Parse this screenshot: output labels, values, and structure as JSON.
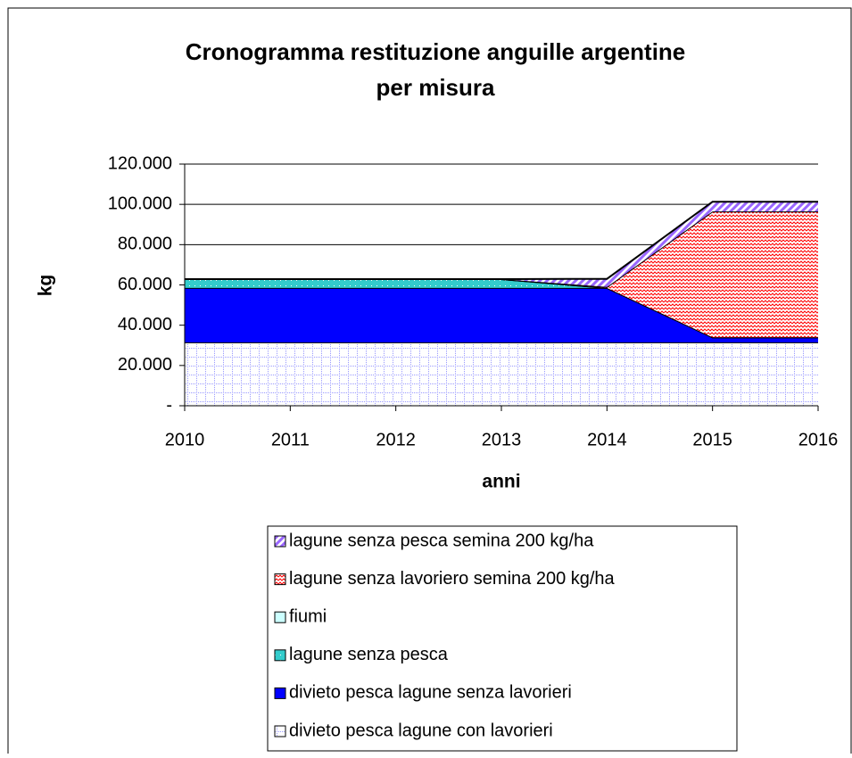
{
  "chart_data": {
    "type": "stacked-area",
    "title": [
      "Cronogramma restituzione anguille argentine",
      "per misura"
    ],
    "x_label": "anni",
    "y_label": "kg",
    "x": [
      2010,
      2011,
      2012,
      2013,
      2014,
      2015,
      2016
    ],
    "xlim": [
      2010,
      2016
    ],
    "xticks": [
      2010,
      2011,
      2012,
      2013,
      2014,
      2015,
      2016
    ],
    "ylim": [
      0,
      120000
    ],
    "yticks": [
      {
        "value": 0,
        "label": "-"
      },
      {
        "value": 20000,
        "label": "20.000"
      },
      {
        "value": 40000,
        "label": "40.000"
      },
      {
        "value": 60000,
        "label": "60.000"
      },
      {
        "value": 80000,
        "label": "80.000"
      },
      {
        "value": 100000,
        "label": "100.000"
      },
      {
        "value": 120000,
        "label": "120.000"
      }
    ],
    "grid": true,
    "series": [
      {
        "name": "divieto pesca lagune con lavorieri",
        "color": "#9999ff",
        "pattern": "grid",
        "values": [
          31500,
          31500,
          31500,
          31500,
          31500,
          31500,
          31500
        ]
      },
      {
        "name": "divieto pesca lagune senza lavorieri",
        "color": "#0000ff",
        "pattern": "solid",
        "values": [
          27000,
          27000,
          27000,
          27000,
          27000,
          2500,
          2500
        ]
      },
      {
        "name": "lagune senza pesca",
        "color": "#33cccc",
        "pattern": "dots",
        "values": [
          4400,
          4400,
          4400,
          4400,
          0,
          0,
          0
        ]
      },
      {
        "name": "fiumi",
        "color": "#ccffff",
        "pattern": "solid",
        "values": [
          0,
          0,
          0,
          0,
          0,
          0,
          0
        ]
      },
      {
        "name": "lagune senza lavoriero semina 200 kg/ha",
        "color": "#ff0000",
        "pattern": "wave",
        "values": [
          0,
          0,
          0,
          0,
          500,
          62500,
          62500
        ]
      },
      {
        "name": "lagune senza pesca semina 200 kg/ha",
        "color": "#9966ff",
        "pattern": "stripes",
        "values": [
          0,
          0,
          0,
          0,
          4000,
          4800,
          4800
        ]
      }
    ]
  }
}
